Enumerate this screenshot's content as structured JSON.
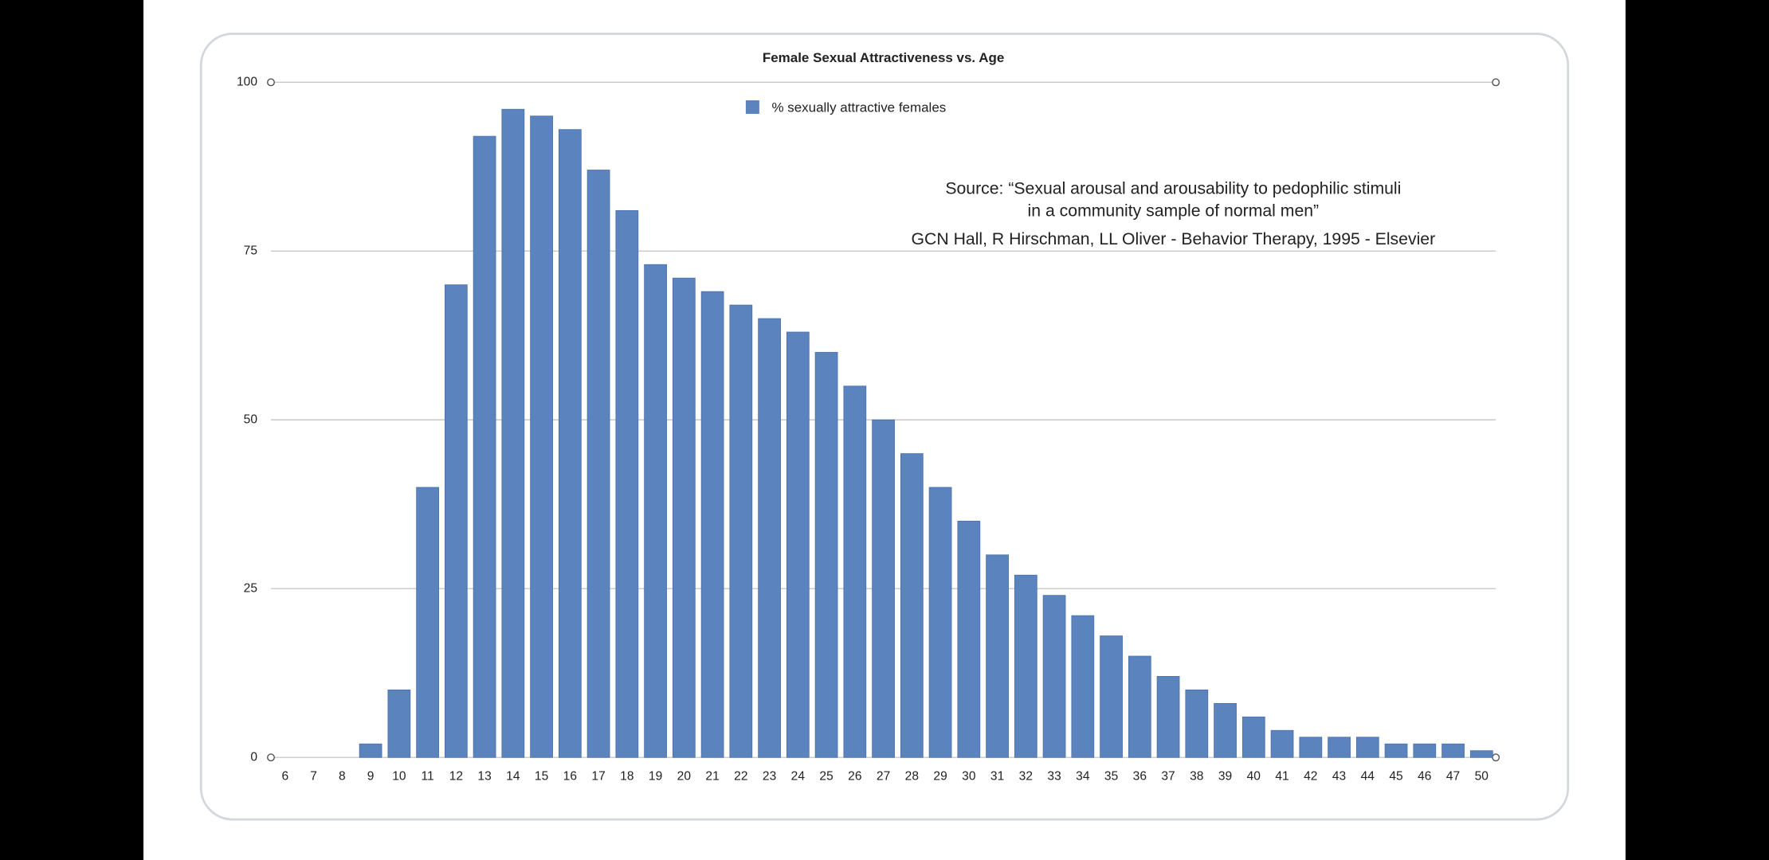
{
  "chart_data": {
    "type": "bar",
    "title": "Female Sexual Attractiveness vs. Age",
    "categories": [
      "6",
      "7",
      "8",
      "9",
      "10",
      "11",
      "12",
      "13",
      "14",
      "15",
      "16",
      "17",
      "18",
      "19",
      "20",
      "21",
      "22",
      "23",
      "24",
      "25",
      "26",
      "27",
      "28",
      "29",
      "30",
      "31",
      "32",
      "33",
      "34",
      "35",
      "36",
      "37",
      "38",
      "39",
      "40",
      "41",
      "42",
      "43",
      "44",
      "45",
      "46",
      "47",
      "50"
    ],
    "series": [
      {
        "name": "% sexually attractive females",
        "color": "#5b84bf",
        "values": [
          0,
          0,
          0,
          2,
          10,
          40,
          70,
          92,
          96,
          95,
          93,
          87,
          81,
          73,
          71,
          69,
          67,
          65,
          63,
          60,
          55,
          50,
          45,
          40,
          35,
          30,
          27,
          24,
          21,
          18,
          15,
          12,
          10,
          8,
          6,
          4,
          3,
          3,
          3,
          2,
          2,
          2,
          1
        ]
      }
    ],
    "ylim": [
      0,
      100
    ],
    "yticks": [
      0,
      25,
      50,
      75,
      100
    ],
    "grid": true,
    "legend": "top",
    "annotation": [
      "Source: “Sexual arousal and arousability to pedophilic stimuli",
      "in a community sample of normal men”",
      "GCN Hall, R Hirschman, LL Oliver - Behavior Therapy, 1995 - Elsevier"
    ]
  }
}
